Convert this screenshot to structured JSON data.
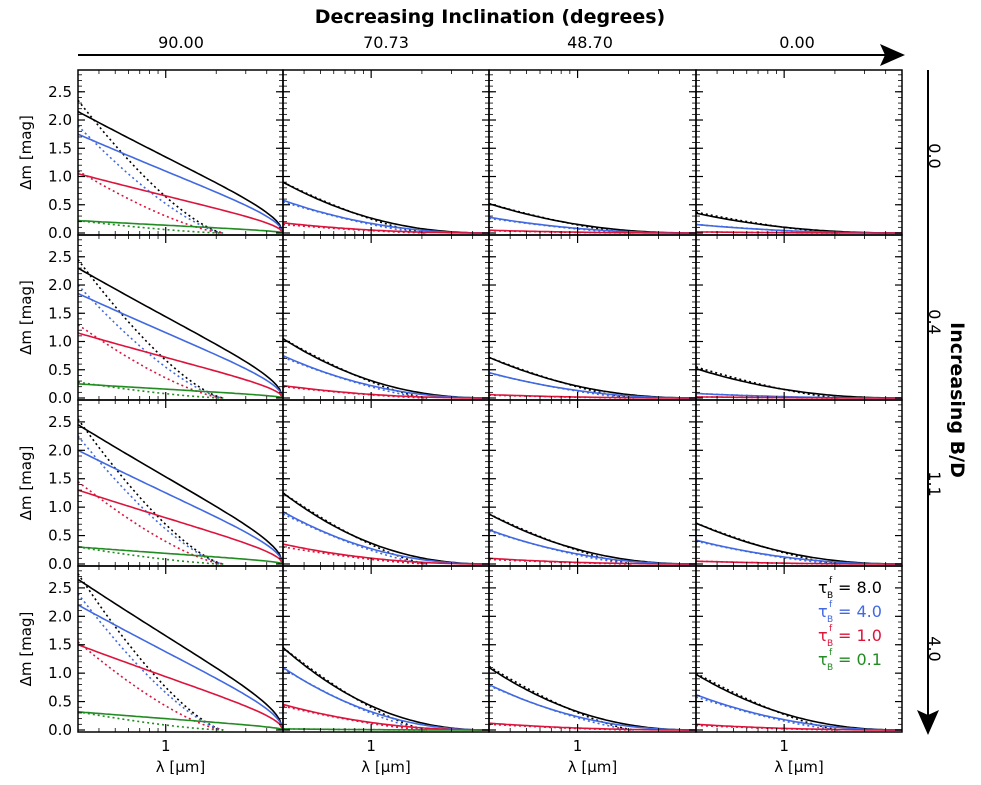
{
  "chart_data": {
    "type": "line",
    "title": "Decreasing Inclination (degrees)",
    "row_axis_title": "Increasing B/D",
    "inclinations": [
      "90.00",
      "70.73",
      "48.70",
      "0.00"
    ],
    "bd_values": [
      "0.0",
      "0.4",
      "1.1",
      "4.0"
    ],
    "xlabel": "λ [μm]",
    "ylabel": "Δm [mag]",
    "xlim": [
      0.3,
      5.0
    ],
    "x_tick_label": "1",
    "ylim": [
      0.0,
      2.85
    ],
    "yticks": [
      "0.0",
      "0.5",
      "1.0",
      "1.5",
      "2.0",
      "2.5"
    ],
    "legend": {
      "location": "lower-right of bottom-right panel",
      "entries": [
        {
          "symbol": "τ",
          "sup": "f",
          "sub": "B",
          "text": "= 8.0",
          "color": "#000000"
        },
        {
          "symbol": "τ",
          "sup": "f",
          "sub": "B",
          "text": "= 4.0",
          "color": "#4169e1"
        },
        {
          "symbol": "τ",
          "sup": "f",
          "sub": "B",
          "text": "= 1.0",
          "color": "#dc143c"
        },
        {
          "symbol": "τ",
          "sup": "f",
          "sub": "B",
          "text": "= 0.1",
          "color": "#228b22"
        }
      ]
    },
    "series_styles": [
      {
        "tau": "8.0",
        "color": "#000000"
      },
      {
        "tau": "4.0",
        "color": "#4169e1"
      },
      {
        "tau": "1.0",
        "color": "#dc143c"
      },
      {
        "tau": "0.1",
        "color": "#228b22"
      }
    ],
    "panels": [
      [
        {
          "solid": [
            2.15,
            1.75,
            1.05,
            0.22
          ],
          "dotted": [
            2.35,
            1.9,
            1.1,
            0.22
          ],
          "dot_end": 2.2,
          "dot_steps": true,
          "solid_shape": "convex"
        },
        {
          "solid": [
            0.9,
            0.58,
            0.18,
            0.0
          ],
          "dotted": [
            0.9,
            0.55,
            0.15,
            0.0
          ],
          "dot_end": 2.2,
          "dot_steps": false,
          "solid_shape": "concave"
        },
        {
          "solid": [
            0.52,
            0.28,
            0.05,
            0.0
          ],
          "dotted": [
            0.52,
            0.26,
            0.04,
            0.0
          ],
          "dot_end": 2.2,
          "dot_steps": false,
          "solid_shape": "concave"
        },
        {
          "solid": [
            0.35,
            0.15,
            0.02,
            0.0
          ],
          "dotted": [
            0.37,
            0.15,
            0.02,
            0.0
          ],
          "dot_end": 2.2,
          "dot_steps": false,
          "solid_shape": "concave"
        }
      ],
      [
        {
          "solid": [
            2.3,
            1.85,
            1.15,
            0.25
          ],
          "dotted": [
            2.45,
            2.0,
            1.3,
            0.28
          ],
          "dot_end": 2.2,
          "dot_steps": true,
          "solid_shape": "convex"
        },
        {
          "solid": [
            1.05,
            0.75,
            0.22,
            0.0
          ],
          "dotted": [
            1.05,
            0.72,
            0.2,
            0.0
          ],
          "dot_end": 2.2,
          "dot_steps": false,
          "solid_shape": "concave"
        },
        {
          "solid": [
            0.72,
            0.45,
            0.06,
            0.0
          ],
          "dotted": [
            0.72,
            0.44,
            0.05,
            0.0
          ],
          "dot_end": 2.2,
          "dot_steps": false,
          "solid_shape": "concave"
        },
        {
          "solid": [
            0.52,
            0.08,
            0.02,
            0.0
          ],
          "dotted": [
            0.55,
            0.08,
            0.02,
            0.0
          ],
          "dot_end": 2.2,
          "dot_steps": false,
          "solid_shape": "concave"
        }
      ],
      [
        {
          "solid": [
            2.45,
            2.0,
            1.3,
            0.3
          ],
          "dotted": [
            2.55,
            2.25,
            1.45,
            0.3
          ],
          "dot_end": 2.2,
          "dot_steps": true,
          "solid_shape": "convex"
        },
        {
          "solid": [
            1.25,
            0.92,
            0.35,
            0.0
          ],
          "dotted": [
            1.25,
            0.88,
            0.3,
            0.0
          ],
          "dot_end": 2.2,
          "dot_steps": false,
          "solid_shape": "concave"
        },
        {
          "solid": [
            0.88,
            0.6,
            0.1,
            0.0
          ],
          "dotted": [
            0.88,
            0.58,
            0.08,
            0.0
          ],
          "dot_end": 2.2,
          "dot_steps": false,
          "solid_shape": "concave"
        },
        {
          "solid": [
            0.72,
            0.42,
            0.05,
            0.0
          ],
          "dotted": [
            0.72,
            0.4,
            0.05,
            0.0
          ],
          "dot_end": 2.2,
          "dot_steps": false,
          "solid_shape": "concave"
        }
      ],
      [
        {
          "solid": [
            2.65,
            2.2,
            1.5,
            0.32
          ],
          "dotted": [
            2.75,
            2.4,
            1.55,
            0.32
          ],
          "dot_end": 2.2,
          "dot_steps": true,
          "solid_shape": "convex"
        },
        {
          "solid": [
            1.45,
            1.1,
            0.45,
            0.02
          ],
          "dotted": [
            1.45,
            1.08,
            0.42,
            0.02
          ],
          "dot_end": 2.2,
          "dot_steps": false,
          "solid_shape": "concave"
        },
        {
          "solid": [
            1.1,
            0.8,
            0.12,
            0.0
          ],
          "dotted": [
            1.12,
            0.78,
            0.1,
            0.0
          ],
          "dot_end": 2.2,
          "dot_steps": false,
          "solid_shape": "concave"
        },
        {
          "solid": [
            0.98,
            0.62,
            0.1,
            0.0
          ],
          "dotted": [
            1.0,
            0.58,
            0.08,
            0.0
          ],
          "dot_end": 2.2,
          "dot_steps": false,
          "solid_shape": "concave"
        }
      ]
    ]
  }
}
